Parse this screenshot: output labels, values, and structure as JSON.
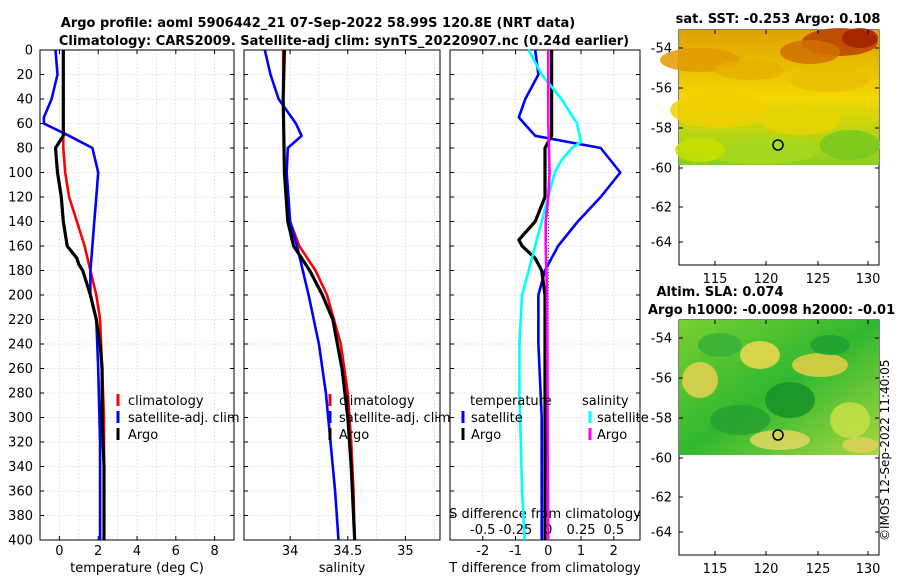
{
  "title": {
    "line1": "Argo profile: aoml 5906442_21 07-Sep-2022 58.99S 120.8E (NRT data)",
    "line2": "Climatology: CARS2009. Satellite-adj clim: synTS_20220907.nc (0.24d earlier)"
  },
  "watermark": "©IMOS 12-Sep-2022 11:40:05",
  "colors": {
    "climatology": "#ff0000",
    "satellite": "#0000ff",
    "argo": "#000000",
    "salinity_sat": "#00ffff",
    "salinity_argo": "#ff00ff"
  },
  "chart_data": [
    {
      "type": "line",
      "id": "temperature",
      "xlabel": "temperature (deg C)",
      "ylim": [
        400,
        0
      ],
      "xlim": [
        -1,
        9
      ],
      "yticks": [
        "0",
        "20",
        "40",
        "60",
        "80",
        "100",
        "120",
        "140",
        "160",
        "180",
        "200",
        "220",
        "240",
        "260",
        "280",
        "300",
        "320",
        "340",
        "360",
        "380",
        "400"
      ],
      "xticks": [
        "0",
        "2",
        "4",
        "6",
        "8"
      ],
      "legend": [
        "climatology",
        "satellite-adj. clim",
        "Argo"
      ],
      "series": [
        {
          "name": "climatology",
          "depth": [
            0,
            40,
            80,
            100,
            120,
            140,
            160,
            180,
            200,
            220,
            260,
            300,
            340,
            400
          ],
          "values": [
            0.2,
            0.2,
            0.2,
            0.3,
            0.5,
            0.9,
            1.3,
            1.6,
            1.9,
            2.1,
            2.2,
            2.3,
            2.3,
            2.3
          ]
        },
        {
          "name": "satellite-adj. clim",
          "depth": [
            0,
            20,
            40,
            55,
            60,
            70,
            80,
            100,
            120,
            140,
            160,
            180,
            200,
            220,
            260,
            320,
            400
          ],
          "values": [
            -0.2,
            -0.1,
            -0.4,
            -0.8,
            -0.8,
            0.5,
            1.7,
            2.0,
            1.9,
            1.8,
            1.7,
            1.6,
            1.6,
            1.9,
            2.0,
            2.1,
            2.1
          ]
        },
        {
          "name": "Argo",
          "depth": [
            0,
            40,
            70,
            80,
            100,
            120,
            140,
            160,
            170,
            175,
            180,
            190,
            200,
            220,
            240,
            260,
            300,
            340,
            400
          ],
          "values": [
            0.2,
            0.2,
            0.2,
            -0.2,
            -0.1,
            0.1,
            0.2,
            0.4,
            0.9,
            1.0,
            1.2,
            1.4,
            1.6,
            1.9,
            2.1,
            2.2,
            2.2,
            2.3,
            2.3
          ]
        }
      ]
    },
    {
      "type": "line",
      "id": "salinity",
      "xlabel": "salinity",
      "ylim": [
        400,
        0
      ],
      "xlim": [
        33.6,
        35.3
      ],
      "xticks": [
        "34",
        "34.5",
        "35"
      ],
      "legend": [
        "climatology",
        "satellite-adj. clim",
        "Argo"
      ],
      "series": [
        {
          "name": "climatology",
          "depth": [
            0,
            40,
            100,
            140,
            160,
            180,
            200,
            240,
            280,
            320,
            360,
            400
          ],
          "values": [
            33.94,
            33.94,
            33.95,
            34.0,
            34.08,
            34.22,
            34.32,
            34.44,
            34.5,
            34.53,
            34.55,
            34.56
          ]
        },
        {
          "name": "satellite-adj. clim",
          "depth": [
            0,
            20,
            40,
            60,
            70,
            80,
            100,
            140,
            160,
            200,
            240,
            280,
            320,
            360,
            400
          ],
          "values": [
            33.78,
            33.83,
            33.9,
            34.05,
            34.1,
            33.98,
            33.97,
            34.0,
            34.06,
            34.16,
            34.25,
            34.31,
            34.35,
            34.39,
            34.42
          ]
        },
        {
          "name": "Argo",
          "depth": [
            0,
            40,
            100,
            140,
            160,
            180,
            200,
            220,
            260,
            300,
            340,
            400
          ],
          "values": [
            33.95,
            33.94,
            33.95,
            33.98,
            34.03,
            34.17,
            34.28,
            34.37,
            34.45,
            34.5,
            34.53,
            34.56
          ]
        }
      ]
    },
    {
      "type": "line",
      "id": "difference",
      "xlabel": "T difference from climatology",
      "top_label": "S difference from climatology",
      "ylim": [
        400,
        0
      ],
      "xlim": [
        -3,
        2.8
      ],
      "xticks": [
        "-2",
        "-1",
        "0",
        "1",
        "2"
      ],
      "top_ticks": [
        "-0.5",
        "-0.25",
        "0",
        "0.25",
        "0.5"
      ],
      "legend_temperature_title": "temperature",
      "legend_salinity_title": "salinity",
      "legend_temperature": [
        "satellite",
        "Argo"
      ],
      "legend_salinity": [
        "satellite",
        "Argo"
      ],
      "series": [
        {
          "name": "T satellite",
          "depth": [
            0,
            20,
            40,
            55,
            70,
            80,
            100,
            120,
            140,
            160,
            180,
            200,
            240,
            300,
            400
          ],
          "values": [
            -0.4,
            -0.3,
            -0.7,
            -0.9,
            -0.4,
            1.6,
            2.2,
            1.6,
            0.9,
            0.3,
            -0.1,
            -0.3,
            -0.3,
            -0.2,
            -0.2
          ]
        },
        {
          "name": "T Argo",
          "depth": [
            0,
            40,
            70,
            80,
            100,
            120,
            140,
            155,
            160,
            170,
            180,
            200,
            220,
            400
          ],
          "values": [
            0.1,
            0.1,
            0.1,
            -0.1,
            -0.1,
            -0.1,
            -0.4,
            -0.9,
            -0.8,
            -0.4,
            -0.2,
            -0.1,
            -0.1,
            -0.1
          ]
        },
        {
          "name": "S satellite",
          "depth": [
            0,
            20,
            40,
            60,
            75,
            80,
            90,
            100,
            140,
            160,
            200,
            240,
            280,
            320,
            360,
            400
          ],
          "values": [
            -0.15,
            -0.05,
            0.1,
            0.22,
            0.25,
            0.18,
            0.1,
            0.05,
            -0.05,
            -0.1,
            -0.2,
            -0.22,
            -0.22,
            -0.21,
            -0.2,
            -0.18
          ]
        },
        {
          "name": "S Argo",
          "depth": [
            0,
            60,
            100,
            120,
            140,
            160,
            200,
            400
          ],
          "values": [
            0.0,
            0.0,
            0.01,
            0.0,
            -0.02,
            -0.02,
            -0.01,
            0.0
          ]
        }
      ]
    },
    {
      "type": "heatmap",
      "id": "sst_map",
      "title": "sat. SST: -0.253 Argo: 0.108",
      "yticks": [
        "-54",
        "-56",
        "-58",
        "-60",
        "-62",
        "-64"
      ],
      "xticks": [
        "115",
        "120",
        "125",
        "130"
      ],
      "marker": {
        "lon": 120.8,
        "lat": -58.99
      }
    },
    {
      "type": "heatmap",
      "id": "sla_map",
      "title_line1": "Altim. SLA: 0.074",
      "title_line2": "Argo h1000: -0.0098 h2000: -0.01",
      "yticks": [
        "-54",
        "-56",
        "-58",
        "-60",
        "-62",
        "-64"
      ],
      "xticks": [
        "115",
        "120",
        "125",
        "130"
      ],
      "marker": {
        "lon": 120.8,
        "lat": -58.99
      }
    }
  ]
}
